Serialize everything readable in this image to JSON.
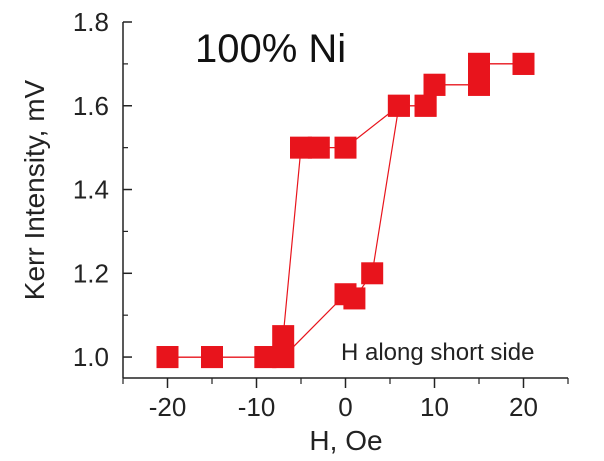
{
  "chart_data": {
    "type": "scatter",
    "title": "100% Ni",
    "xlabel": "H, Oe",
    "ylabel": "Kerr Intensity, mV",
    "annotation": "H along short side",
    "xlim": [
      -25,
      25
    ],
    "ylim": [
      0.95,
      1.8
    ],
    "xticks": [
      -20,
      -10,
      0,
      10,
      20
    ],
    "xtick_labels": [
      "-20",
      "-10",
      "0",
      "10",
      "20"
    ],
    "yticks": [
      1.0,
      1.2,
      1.4,
      1.6,
      1.8
    ],
    "ytick_labels": [
      "1.0",
      "1.2",
      "1.4",
      "1.6",
      "1.8"
    ],
    "grid": false,
    "marker_color": "#e8141c",
    "line_color": "#e8141c",
    "series": [
      {
        "x": [
          -20,
          -15,
          -9,
          -7,
          -7,
          -5,
          -3,
          0,
          6,
          9,
          10,
          15,
          15,
          20
        ],
        "y": [
          1.0,
          1.0,
          1.0,
          1.0,
          1.05,
          1.5,
          1.5,
          1.5,
          1.6,
          1.6,
          1.65,
          1.65,
          1.7,
          1.7
        ]
      },
      {
        "x": [
          20,
          15,
          15,
          10,
          9,
          6,
          3,
          1,
          0,
          -7,
          -9,
          -15,
          -20
        ],
        "y": [
          1.7,
          1.7,
          1.65,
          1.65,
          1.6,
          1.6,
          1.2,
          1.14,
          1.15,
          1.0,
          1.0,
          1.0,
          1.0
        ]
      }
    ]
  }
}
